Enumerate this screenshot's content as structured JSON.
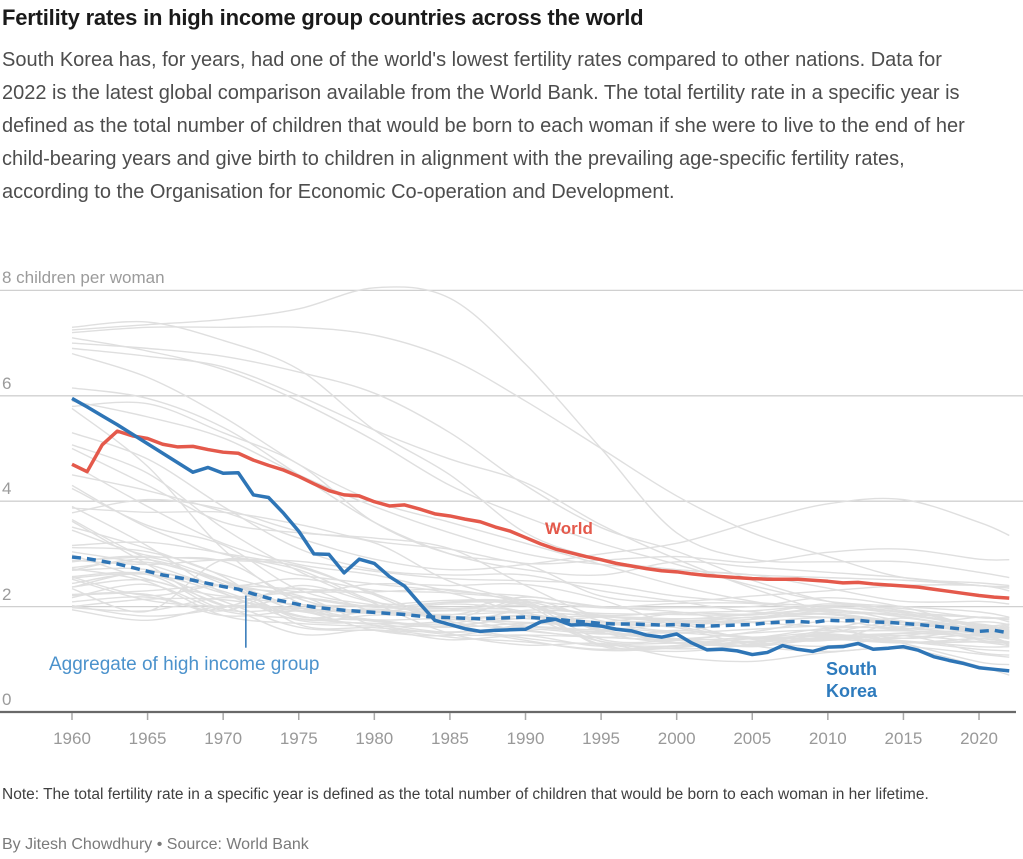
{
  "page": {
    "title": "Fertility rates in high income group countries across the world",
    "deck": "South Korea has, for years, had one of the world's lowest fertility rates compared to other nations. Data for 2022 is the latest global comparison available from the World Bank. The total fertility rate in a specific year is defined as the total number of children that would be born to each woman if she were to live to the end of her child-bearing years and give birth to children in alignment with the prevailing age-specific fertility rates, according to the Organisation for Economic Co-operation and Development.",
    "note": "Note: The total fertility rate in a specific year is defined as the total number of children that would be born to each woman in her lifetime.",
    "byline": "By Jitesh Chowdhury • Source: World Bank"
  },
  "chart_data": {
    "type": "line",
    "title": "Fertility rates in high income group countries across the world",
    "xlabel": "",
    "ylabel": "children per woman",
    "x_start_year": 1960,
    "x_end_year": 2022,
    "x_ticks": [
      1960,
      1965,
      1970,
      1975,
      1980,
      1985,
      1990,
      1995,
      2000,
      2005,
      2010,
      2015,
      2020
    ],
    "ylim": [
      0,
      8
    ],
    "y_ticks": [
      {
        "v": 0,
        "label": "0"
      },
      {
        "v": 2,
        "label": "2"
      },
      {
        "v": 4,
        "label": "4"
      },
      {
        "v": 6,
        "label": "6"
      },
      {
        "v": 8,
        "label": "8 children per woman"
      }
    ],
    "grid": "horizontal",
    "colors": {
      "world": "#e4594b",
      "south_korea": "#2e75b6",
      "aggregate": "#2e75b6",
      "aggregate_label": "#4b92cc",
      "background_line": "#dfdfdf",
      "gridline": "#d0d0d0",
      "axis": "#696969",
      "tick": "#a8a8a8",
      "axis_text": "#999999"
    },
    "series": [
      {
        "name": "World",
        "style": "solid",
        "color_key": "world",
        "values": [
          4.7,
          4.56,
          5.07,
          5.33,
          5.24,
          5.19,
          5.08,
          5.03,
          5.04,
          4.98,
          4.93,
          4.91,
          4.78,
          4.68,
          4.59,
          4.47,
          4.33,
          4.2,
          4.12,
          4.1,
          3.99,
          3.91,
          3.93,
          3.85,
          3.76,
          3.72,
          3.66,
          3.61,
          3.51,
          3.43,
          3.31,
          3.19,
          3.09,
          3.02,
          2.95,
          2.89,
          2.82,
          2.77,
          2.72,
          2.68,
          2.66,
          2.62,
          2.59,
          2.57,
          2.55,
          2.53,
          2.52,
          2.52,
          2.52,
          2.5,
          2.48,
          2.45,
          2.46,
          2.43,
          2.41,
          2.39,
          2.37,
          2.33,
          2.29,
          2.25,
          2.21,
          2.18,
          2.16
        ]
      },
      {
        "name": "South Korea",
        "style": "solid",
        "color_key": "south_korea",
        "values": [
          5.95,
          5.79,
          5.62,
          5.45,
          5.27,
          5.09,
          4.91,
          4.73,
          4.55,
          4.64,
          4.53,
          4.54,
          4.12,
          4.07,
          3.77,
          3.43,
          3.0,
          2.99,
          2.64,
          2.9,
          2.82,
          2.57,
          2.39,
          2.06,
          1.74,
          1.66,
          1.58,
          1.53,
          1.55,
          1.56,
          1.57,
          1.71,
          1.76,
          1.65,
          1.66,
          1.63,
          1.57,
          1.54,
          1.46,
          1.42,
          1.48,
          1.31,
          1.18,
          1.19,
          1.16,
          1.09,
          1.13,
          1.26,
          1.19,
          1.15,
          1.23,
          1.24,
          1.3,
          1.19,
          1.21,
          1.24,
          1.17,
          1.05,
          0.98,
          0.92,
          0.84,
          0.81,
          0.78
        ]
      },
      {
        "name": "Aggregate of high income group",
        "style": "dashed",
        "color_key": "aggregate",
        "values": [
          2.94,
          2.91,
          2.86,
          2.81,
          2.74,
          2.67,
          2.6,
          2.55,
          2.5,
          2.44,
          2.38,
          2.33,
          2.24,
          2.16,
          2.1,
          2.04,
          1.99,
          1.96,
          1.93,
          1.91,
          1.89,
          1.87,
          1.85,
          1.82,
          1.8,
          1.79,
          1.78,
          1.77,
          1.78,
          1.79,
          1.8,
          1.78,
          1.76,
          1.73,
          1.71,
          1.68,
          1.67,
          1.67,
          1.66,
          1.65,
          1.66,
          1.64,
          1.63,
          1.64,
          1.65,
          1.66,
          1.69,
          1.71,
          1.72,
          1.7,
          1.74,
          1.73,
          1.74,
          1.71,
          1.7,
          1.68,
          1.66,
          1.63,
          1.6,
          1.57,
          1.53,
          1.55,
          1.5
        ]
      }
    ],
    "background_series": {
      "years": [
        1960,
        1965,
        1970,
        1975,
        1980,
        1985,
        1990,
        1995,
        2000,
        2005,
        2010,
        2015,
        2020,
        2022
      ],
      "values": [
        [
          7.25,
          7.35,
          7.45,
          7.65,
          8.05,
          7.85,
          6.6,
          5.0,
          3.4,
          2.9,
          2.85,
          2.85,
          2.65,
          2.55
        ],
        [
          7.2,
          7.3,
          7.3,
          7.3,
          7.15,
          6.7,
          5.9,
          5.0,
          4.1,
          3.4,
          2.95,
          2.55,
          2.45,
          2.4
        ],
        [
          7.3,
          7.4,
          7.05,
          6.5,
          5.35,
          4.5,
          3.4,
          2.9,
          2.7,
          2.6,
          2.35,
          2.1,
          2.1,
          2.05
        ],
        [
          6.9,
          6.75,
          6.55,
          6.0,
          5.35,
          4.8,
          4.35,
          3.55,
          2.9,
          2.35,
          1.9,
          1.6,
          1.5,
          1.45
        ],
        [
          7.0,
          6.9,
          6.75,
          6.45,
          6.05,
          5.3,
          4.3,
          3.5,
          3.05,
          2.5,
          2.1,
          1.9,
          1.8,
          1.78
        ],
        [
          7.1,
          6.85,
          6.5,
          5.9,
          5.15,
          4.3,
          3.7,
          3.2,
          2.8,
          2.4,
          2.1,
          2.0,
          1.9,
          1.8
        ],
        [
          6.8,
          6.35,
          5.6,
          4.7,
          4.0,
          3.6,
          3.2,
          2.8,
          2.4,
          2.1,
          1.9,
          1.85,
          1.8,
          1.75
        ],
        [
          5.3,
          4.8,
          3.9,
          3.1,
          2.7,
          2.6,
          2.6,
          2.3,
          2.1,
          1.9,
          1.85,
          1.7,
          1.5,
          1.3
        ],
        [
          5.9,
          5.6,
          5.2,
          4.5,
          3.9,
          3.4,
          3.0,
          2.8,
          2.7,
          2.6,
          2.55,
          2.5,
          2.4,
          2.35
        ],
        [
          5.0,
          4.3,
          3.6,
          3.4,
          3.3,
          3.1,
          2.4,
          1.8,
          1.7,
          1.7,
          1.8,
          1.7,
          1.6,
          1.6
        ],
        [
          4.3,
          3.5,
          3.0,
          2.7,
          2.1,
          1.8,
          1.7,
          1.7,
          1.7,
          1.8,
          1.8,
          1.7,
          1.6,
          1.6
        ],
        [
          3.65,
          2.91,
          2.48,
          1.77,
          1.84,
          1.84,
          2.08,
          1.98,
          2.06,
          2.06,
          1.93,
          1.84,
          1.64,
          1.67
        ],
        [
          3.9,
          3.15,
          2.26,
          1.82,
          1.74,
          1.61,
          1.68,
          1.62,
          1.51,
          1.57,
          1.63,
          1.56,
          1.4,
          1.33
        ],
        [
          3.45,
          2.97,
          2.86,
          2.15,
          1.89,
          1.92,
          1.9,
          1.82,
          1.76,
          1.85,
          1.93,
          1.81,
          1.58,
          1.63
        ],
        [
          4.24,
          3.54,
          3.17,
          2.32,
          2.03,
          1.93,
          2.18,
          1.98,
          1.98,
          2.0,
          2.17,
          1.99,
          1.61,
          1.66
        ],
        [
          2.0,
          2.14,
          2.13,
          1.91,
          1.75,
          1.76,
          1.54,
          1.42,
          1.36,
          1.26,
          1.39,
          1.45,
          1.33,
          1.26
        ],
        [
          2.74,
          2.84,
          2.48,
          1.93,
          1.95,
          1.81,
          1.77,
          1.71,
          1.87,
          1.92,
          2.02,
          1.96,
          1.79,
          1.79
        ],
        [
          2.37,
          2.5,
          2.03,
          1.48,
          1.56,
          1.37,
          1.45,
          1.25,
          1.38,
          1.34,
          1.39,
          1.5,
          1.53,
          1.46
        ],
        [
          2.37,
          2.66,
          2.38,
          2.21,
          1.64,
          1.42,
          1.33,
          1.19,
          1.26,
          1.34,
          1.46,
          1.35,
          1.24,
          1.24
        ],
        [
          2.86,
          2.94,
          2.88,
          2.77,
          2.22,
          1.64,
          1.36,
          1.17,
          1.22,
          1.33,
          1.37,
          1.33,
          1.19,
          1.16
        ],
        [
          2.69,
          2.89,
          2.43,
          1.81,
          1.9,
          1.79,
          1.83,
          1.71,
          1.64,
          1.76,
          1.92,
          1.8,
          1.56,
          1.49
        ],
        [
          3.78,
          4.03,
          3.85,
          3.43,
          3.21,
          2.48,
          2.11,
          1.84,
          1.89,
          1.86,
          2.05,
          1.92,
          1.63,
          1.54
        ],
        [
          3.12,
          3.04,
          2.57,
          1.66,
          1.6,
          1.51,
          1.62,
          1.53,
          1.72,
          1.71,
          1.79,
          1.66,
          1.55,
          1.49
        ],
        [
          2.85,
          2.94,
          2.5,
          1.98,
          1.72,
          1.68,
          1.93,
          1.87,
          1.85,
          1.84,
          1.95,
          1.72,
          1.48,
          1.41
        ],
        [
          2.17,
          2.42,
          1.92,
          1.77,
          1.68,
          1.74,
          2.13,
          1.73,
          1.54,
          1.77,
          1.98,
          1.85,
          1.66,
          1.52
        ],
        [
          2.72,
          2.47,
          1.83,
          1.68,
          1.63,
          1.64,
          1.78,
          1.81,
          1.73,
          1.8,
          1.87,
          1.65,
          1.37,
          1.32
        ],
        [
          2.57,
          2.61,
          1.95,
          1.92,
          1.55,
          1.45,
          1.67,
          1.8,
          1.77,
          1.8,
          1.87,
          1.71,
          1.67,
          1.55
        ],
        [
          2.44,
          2.61,
          2.1,
          1.61,
          1.55,
          1.52,
          1.58,
          1.48,
          1.5,
          1.42,
          1.52,
          1.54,
          1.46,
          1.39
        ],
        [
          2.69,
          2.7,
          2.29,
          1.83,
          1.65,
          1.47,
          1.46,
          1.42,
          1.36,
          1.41,
          1.44,
          1.49,
          1.44,
          1.41
        ],
        [
          2.54,
          2.62,
          2.25,
          1.74,
          1.68,
          1.51,
          1.62,
          1.56,
          1.67,
          1.76,
          1.86,
          1.7,
          1.55,
          1.53
        ],
        [
          3.16,
          3.22,
          3.01,
          2.75,
          2.25,
          1.72,
          1.56,
          1.41,
          1.55,
          1.41,
          1.39,
          1.31,
          1.4,
          1.43
        ],
        [
          2.23,
          2.3,
          2.4,
          2.33,
          2.23,
          1.67,
          1.4,
          1.28,
          1.25,
          1.34,
          1.48,
          1.33,
          1.34,
          1.32
        ],
        [
          5.76,
          4.66,
          3.09,
          2.07,
          1.74,
          1.61,
          1.83,
          1.67,
          1.6,
          1.26,
          1.15,
          1.24,
          1.1,
          1.04
        ],
        [
          5.07,
          4.53,
          3.49,
          2.67,
          2.06,
          1.49,
          1.27,
          1.3,
          1.04,
          0.96,
          1.13,
          1.2,
          0.87,
          0.7
        ],
        [
          3.87,
          3.79,
          3.79,
          3.56,
          3.24,
          3.09,
          2.82,
          2.88,
          2.95,
          2.84,
          3.03,
          3.09,
          2.9,
          2.89
        ],
        [
          2.98,
          2.52,
          2.2,
          2.27,
          2.28,
          2.32,
          2.06,
          1.62,
          1.37,
          1.24,
          1.41,
          1.32,
          1.39,
          1.33
        ],
        [
          2.09,
          2.18,
          1.92,
          2.4,
          2.08,
          1.96,
          1.9,
          1.28,
          1.15,
          1.29,
          1.51,
          1.57,
          1.71,
          1.66
        ],
        [
          2.02,
          1.82,
          1.98,
          2.35,
          1.91,
          1.85,
          1.87,
          1.57,
          1.32,
          1.31,
          1.25,
          1.45,
          1.56,
          1.52
        ],
        [
          2.34,
          1.91,
          2.89,
          2.6,
          2.43,
          2.26,
          1.83,
          1.34,
          1.31,
          1.4,
          1.59,
          1.62,
          1.8,
          1.71
        ],
        [
          3.04,
          2.8,
          2.4,
          2.53,
          2.31,
          2.26,
          2.09,
          1.52,
          1.3,
          1.27,
          1.43,
          1.4,
          1.57,
          1.57
        ],
        [
          2.56,
          2.21,
          2.4,
          2.18,
          1.99,
          2.08,
          2.03,
          1.55,
          1.39,
          1.27,
          1.5,
          1.7,
          1.48,
          1.27
        ],
        [
          1.94,
          1.74,
          2.01,
          1.96,
          1.88,
          2.09,
          2.02,
          1.25,
          1.25,
          1.39,
          1.36,
          1.7,
          1.55,
          1.47
        ],
        [
          1.98,
          1.92,
          2.17,
          2.04,
          2.02,
          2.12,
          2.05,
          1.38,
          1.36,
          1.52,
          1.72,
          1.58,
          1.58,
          1.41
        ],
        [
          2.52,
          2.12,
          2.0,
          1.97,
          1.89,
          2.05,
          1.89,
          1.34,
          1.2,
          1.29,
          1.57,
          1.78,
          1.51,
          1.42
        ],
        [
          2.88,
          2.8,
          2.89,
          2.86,
          2.67,
          2.53,
          2.49,
          2.42,
          2.2,
          2.08,
          2.0,
          1.88,
          1.6,
          1.5
        ],
        [
          4.7,
          3.9,
          3.2,
          2.8,
          2.6,
          2.3,
          2.2,
          2.0,
          1.9,
          1.7,
          1.6,
          1.3,
          0.95,
          0.9
        ],
        [
          6.15,
          5.95,
          5.4,
          4.5,
          3.6,
          3.0,
          2.7,
          2.6,
          2.85,
          2.75,
          2.65,
          2.55,
          2.4,
          2.38
        ],
        [
          4.5,
          4.2,
          3.8,
          3.3,
          2.9,
          2.7,
          2.8,
          3.0,
          3.2,
          3.6,
          3.95,
          4.03,
          3.6,
          3.35
        ],
        [
          3.62,
          2.8,
          2.02,
          2.17,
          1.99,
          1.96,
          2.02,
          1.82,
          1.68,
          1.38,
          1.36,
          1.45,
          1.13,
          1.08
        ],
        [
          3.51,
          3.1,
          2.6,
          2.28,
          2.43,
          2.4,
          2.42,
          2.13,
          1.64,
          1.42,
          1.44,
          1.32,
          1.33,
          1.3
        ],
        [
          5.8,
          5.85,
          5.3,
          4.7,
          3.6,
          3.0,
          2.8,
          2.2,
          2.1,
          2.2,
          2.3,
          2.4,
          2.4,
          2.3
        ],
        [
          2.21,
          2.23,
          1.83,
          1.92,
          1.92,
          1.81,
          1.63,
          1.5,
          1.39,
          1.5,
          1.55,
          1.4,
          1.48,
          1.53
        ]
      ]
    },
    "annotations": {
      "world_label": {
        "text": "World"
      },
      "south_korea_label": {
        "text": "South\nKorea"
      },
      "aggregate_label": {
        "text": "Aggregate of high income group",
        "pointer": {
          "year": 1971.5,
          "value_top": 2.21,
          "value_bottom": 1.22
        }
      }
    },
    "legend_position": "inline-labels"
  }
}
